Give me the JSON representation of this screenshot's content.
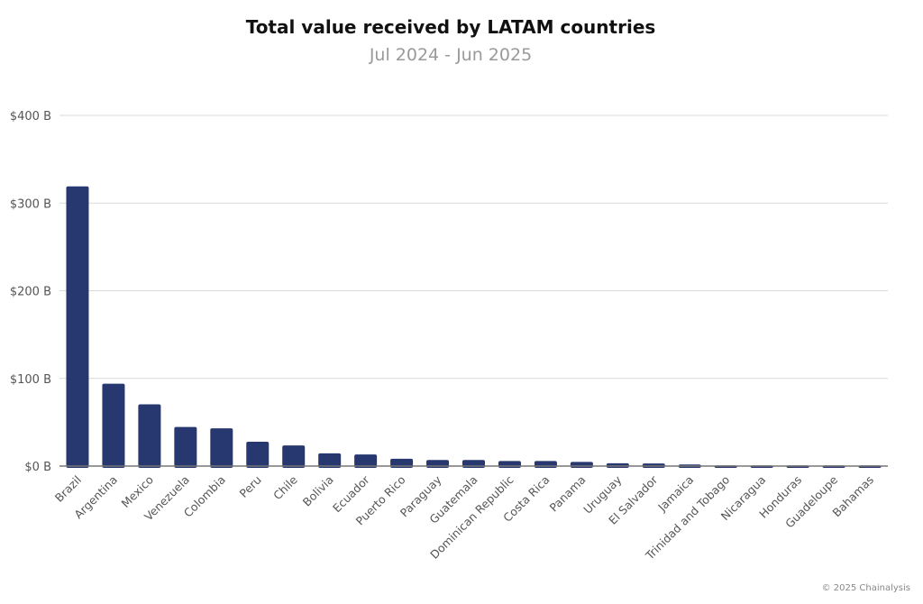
{
  "chart_data": {
    "type": "bar",
    "title": "Total value received by LATAM countries",
    "subtitle": "Jul 2024 - Jun 2025",
    "xlabel": "",
    "ylabel": "",
    "ylim": [
      0,
      400
    ],
    "yticks": [
      0,
      100,
      200,
      300,
      400
    ],
    "ytick_labels": [
      "$0 B",
      "$100 B",
      "$200 B",
      "$300 B",
      "$400 B"
    ],
    "grid": true,
    "bar_color": "#27376f",
    "categories": [
      "Brazil",
      "Argentina",
      "Mexico",
      "Venezuela",
      "Colombia",
      "Peru",
      "Chile",
      "Bolivia",
      "Ecuador",
      "Puerto Rico",
      "Paraguay",
      "Guatemala",
      "Dominican Republic",
      "Costa Rica",
      "Panama",
      "Uruguay",
      "El Salvador",
      "Jamaica",
      "Trinidad and Tobago",
      "Nicaragua",
      "Honduras",
      "Guadeloupe",
      "Bahamas"
    ],
    "values": [
      319,
      94,
      70.5,
      44.6,
      43,
      27.7,
      23.5,
      14.5,
      13.2,
      8.3,
      6.9,
      6.9,
      5.8,
      5.8,
      4.7,
      3.2,
      2.9,
      1.8,
      0.7,
      0.5,
      0.4,
      0.1,
      0.1
    ],
    "unit": "USD billions"
  },
  "credit": "© 2025 Chainalysis"
}
